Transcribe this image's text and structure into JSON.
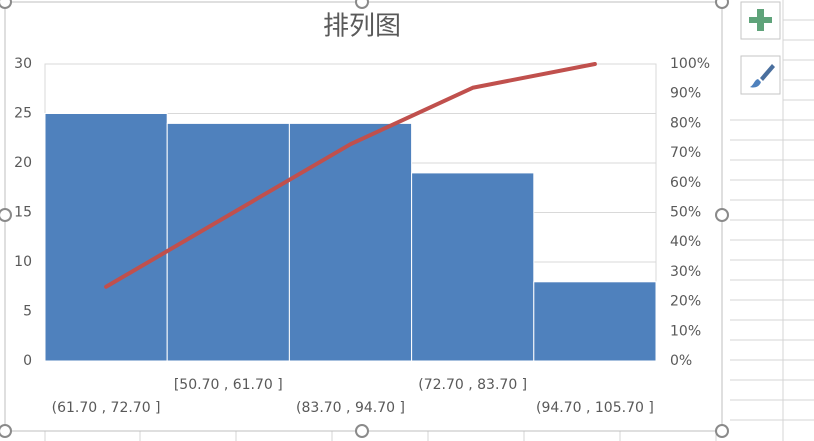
{
  "chart_data": {
    "type": "bar",
    "title": "排列图",
    "categories": [
      "(61.70 , 72.70 ]",
      "[50.70 , 61.70 ]",
      "(83.70 , 94.70 ]",
      "(72.70 , 83.70 ]",
      "(94.70 , 105.70 ]"
    ],
    "series": [
      {
        "type": "bar",
        "color": "#4f81bd",
        "values": [
          25,
          24,
          24,
          19,
          8
        ]
      },
      {
        "type": "line",
        "axis": "y2",
        "color": "#c0504d",
        "values": [
          25,
          49,
          73,
          92,
          100
        ]
      }
    ],
    "ylim": [
      0,
      30
    ],
    "yticks": [
      0,
      5,
      10,
      15,
      20,
      25,
      30
    ],
    "y2lim": [
      0,
      100
    ],
    "y2ticks": [
      {
        "value": 0,
        "label": "0%"
      },
      {
        "value": 10,
        "label": "10%"
      },
      {
        "value": 20,
        "label": "20%"
      },
      {
        "value": 30,
        "label": "30%"
      },
      {
        "value": 40,
        "label": "40%"
      },
      {
        "value": 50,
        "label": "50%"
      },
      {
        "value": 60,
        "label": "60%"
      },
      {
        "value": 70,
        "label": "70%"
      },
      {
        "value": 80,
        "label": "80%"
      },
      {
        "value": 90,
        "label": "90%"
      },
      {
        "value": 100,
        "label": "100%"
      }
    ],
    "grid": true
  }
}
